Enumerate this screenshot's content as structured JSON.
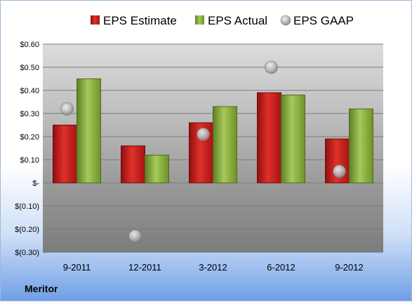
{
  "chart_data": {
    "type": "bar",
    "categories": [
      "9-2011",
      "12-2011",
      "3-2012",
      "6-2012",
      "9-2012"
    ],
    "series": [
      {
        "name": "EPS Estimate",
        "kind": "bar",
        "color": "#cc1f1f",
        "values": [
          0.25,
          0.16,
          0.26,
          0.39,
          0.19
        ]
      },
      {
        "name": "EPS Actual",
        "kind": "bar",
        "color": "#8db43c",
        "values": [
          0.45,
          0.12,
          0.33,
          0.38,
          0.32
        ]
      },
      {
        "name": "EPS GAAP",
        "kind": "marker",
        "color": "#b8b8b8",
        "values": [
          0.32,
          -0.23,
          0.21,
          0.5,
          0.05
        ]
      }
    ],
    "ylim": [
      -0.3,
      0.6
    ],
    "yticks": [
      0.6,
      0.5,
      0.4,
      0.3,
      0.2,
      0.1,
      0.0,
      -0.1,
      -0.2,
      -0.3
    ],
    "ytick_labels": [
      "$0.60",
      "$0.50",
      "$0.40",
      "$0.30",
      "$0.20",
      "$0.10",
      "$-",
      "$(0.10)",
      "$(0.20)",
      "$(0.30)"
    ],
    "grid": true,
    "legend_position": "top",
    "source_label": "Meritor"
  }
}
